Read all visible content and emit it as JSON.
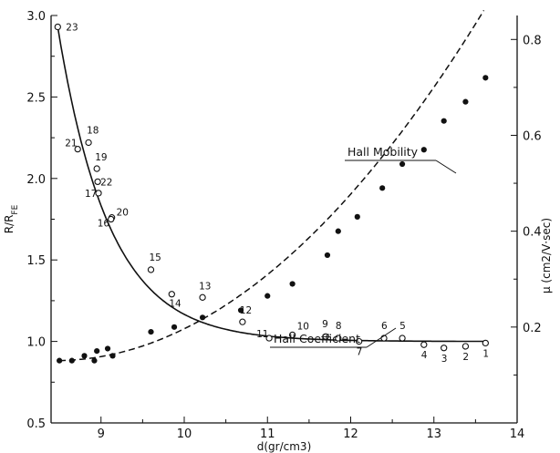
{
  "chart_data": {
    "type": "scatter",
    "xlabel": "d(gr/cm3)",
    "ylabel_left": "R/R_FE",
    "ylabel_right": "μ (cm2/V·sec)",
    "xlim": [
      8.4,
      14
    ],
    "ylim_left": [
      0.5,
      3.0
    ],
    "ylim_right": [
      0.0,
      0.85
    ],
    "x_ticks": [
      9,
      10,
      11,
      12,
      13,
      14
    ],
    "y_left_ticks": [
      0.5,
      1.0,
      1.5,
      2.0,
      2.5,
      3.0
    ],
    "y_right_ticks": [
      0.2,
      0.4,
      0.6,
      0.8
    ],
    "grid": false,
    "series": [
      {
        "name": "Hall Coefficient",
        "axis": "left",
        "marker": "open-circle",
        "points": [
          {
            "label": "23",
            "x": 8.48,
            "y": 2.93
          },
          {
            "label": "21",
            "x": 8.72,
            "y": 2.18
          },
          {
            "label": "18",
            "x": 8.85,
            "y": 2.22
          },
          {
            "label": "19",
            "x": 8.95,
            "y": 2.06
          },
          {
            "label": "22",
            "x": 8.96,
            "y": 1.98
          },
          {
            "label": "17",
            "x": 8.97,
            "y": 1.91
          },
          {
            "label": "20",
            "x": 9.13,
            "y": 1.76
          },
          {
            "label": "16",
            "x": 9.12,
            "y": 1.75
          },
          {
            "label": "15",
            "x": 9.6,
            "y": 1.44
          },
          {
            "label": "14",
            "x": 9.85,
            "y": 1.29
          },
          {
            "label": "13",
            "x": 10.22,
            "y": 1.27
          },
          {
            "label": "12",
            "x": 10.7,
            "y": 1.12
          },
          {
            "label": "11",
            "x": 11.02,
            "y": 1.02
          },
          {
            "label": "10",
            "x": 11.3,
            "y": 1.04
          },
          {
            "label": "9",
            "x": 11.7,
            "y": 1.03
          },
          {
            "label": "8",
            "x": 11.85,
            "y": 1.02
          },
          {
            "label": "7",
            "x": 12.1,
            "y": 1.0
          },
          {
            "label": "6",
            "x": 12.4,
            "y": 1.02
          },
          {
            "label": "5",
            "x": 12.62,
            "y": 1.02
          },
          {
            "label": "4",
            "x": 12.88,
            "y": 0.98
          },
          {
            "label": "3",
            "x": 13.12,
            "y": 0.96
          },
          {
            "label": "2",
            "x": 13.38,
            "y": 0.97
          },
          {
            "label": "1",
            "x": 13.62,
            "y": 0.99
          }
        ]
      },
      {
        "name": "Hall Mobility",
        "axis": "right",
        "marker": "filled-circle",
        "points": [
          {
            "x": 8.5,
            "y": 0.13
          },
          {
            "x": 8.65,
            "y": 0.13
          },
          {
            "x": 8.8,
            "y": 0.14
          },
          {
            "x": 8.92,
            "y": 0.13
          },
          {
            "x": 8.95,
            "y": 0.15
          },
          {
            "x": 9.08,
            "y": 0.155
          },
          {
            "x": 9.14,
            "y": 0.14
          },
          {
            "x": 9.6,
            "y": 0.19
          },
          {
            "x": 9.88,
            "y": 0.2
          },
          {
            "x": 10.22,
            "y": 0.22
          },
          {
            "x": 10.68,
            "y": 0.235
          },
          {
            "x": 11.0,
            "y": 0.265
          },
          {
            "x": 11.3,
            "y": 0.29
          },
          {
            "x": 11.72,
            "y": 0.35
          },
          {
            "x": 11.85,
            "y": 0.4
          },
          {
            "x": 12.08,
            "y": 0.43
          },
          {
            "x": 12.38,
            "y": 0.49
          },
          {
            "x": 12.62,
            "y": 0.54
          },
          {
            "x": 12.88,
            "y": 0.57
          },
          {
            "x": 13.12,
            "y": 0.63
          },
          {
            "x": 13.38,
            "y": 0.67
          },
          {
            "x": 13.62,
            "y": 0.72
          }
        ]
      }
    ],
    "annotations": [
      {
        "text": "Hall Mobility",
        "series": "Hall Mobility"
      },
      {
        "text": "Hall Coefficient",
        "series": "Hall Coefficient"
      }
    ]
  }
}
